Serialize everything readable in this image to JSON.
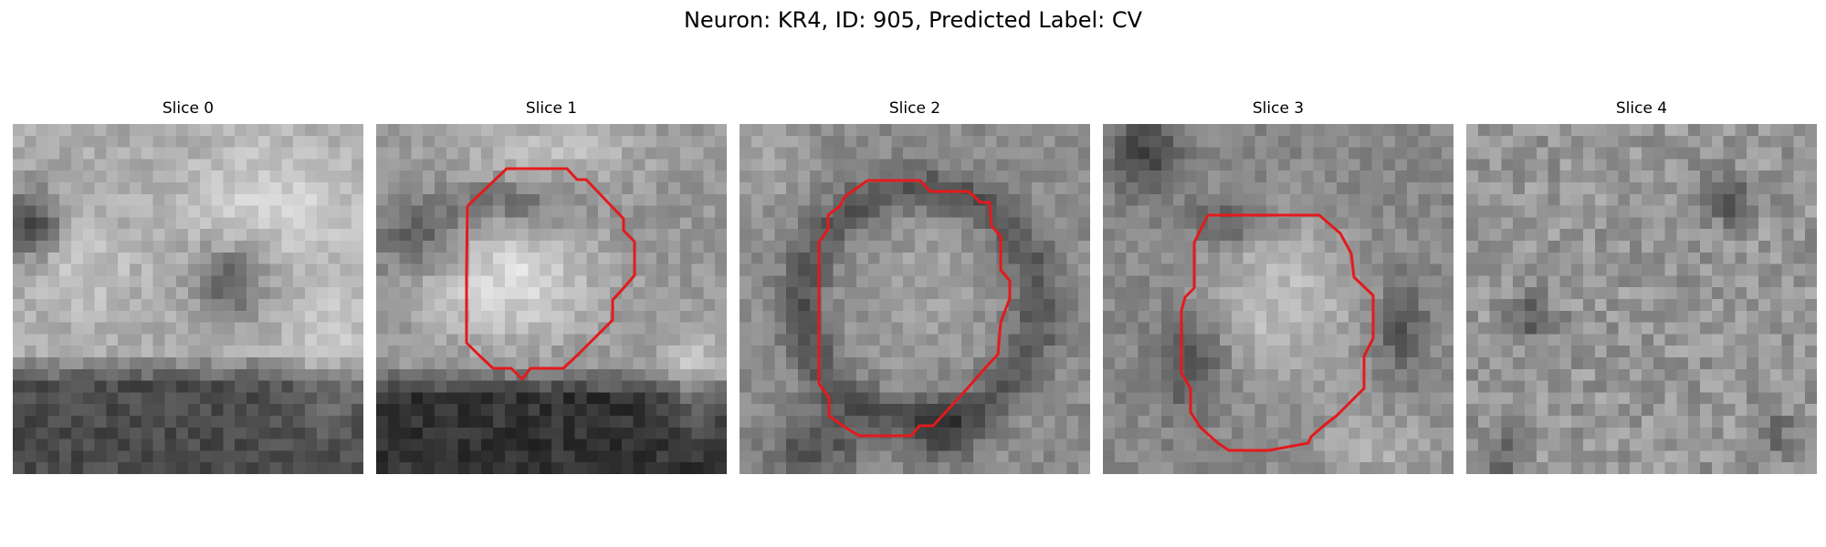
{
  "figure": {
    "title": "Neuron: KR4, ID: 905, Predicted Label: CV"
  },
  "colors": {
    "contour": "#e31a1c",
    "background": "#ffffff",
    "text": "#000000"
  },
  "slices": [
    {
      "label": "Slice 0",
      "has_contour": false,
      "pattern": "bright-top-dark-bottom"
    },
    {
      "label": "Slice 1",
      "has_contour": true,
      "pattern": "bright-center-dark-bottom"
    },
    {
      "label": "Slice 2",
      "has_contour": true,
      "pattern": "gray-center-dark-ring"
    },
    {
      "label": "Slice 3",
      "has_contour": true,
      "pattern": "bright-center-dark-corners"
    },
    {
      "label": "Slice 4",
      "has_contour": false,
      "pattern": "noisy-gray"
    }
  ]
}
